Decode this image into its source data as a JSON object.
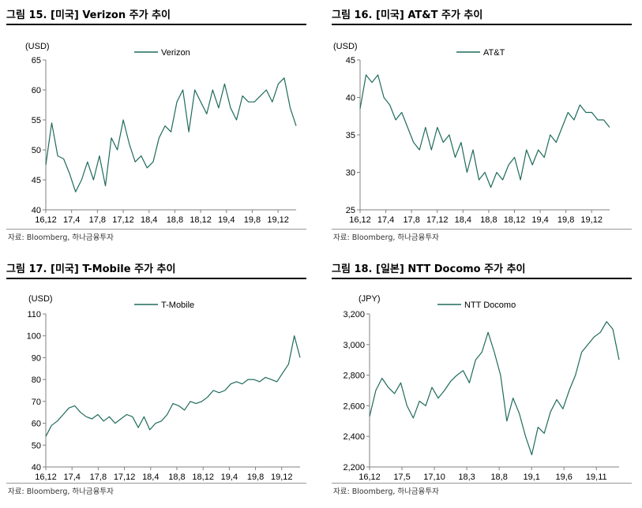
{
  "colors": {
    "series": "#1f6b5c"
  },
  "chart_data": [
    {
      "type": "line",
      "title": "그림 15. [미국] Verizon 주가 추이",
      "unit": "(USD)",
      "source": "자료: Bloomberg, 하나금융투자",
      "series": [
        {
          "name": "Verizon",
          "values": [
            47.5,
            54.5,
            49,
            48.5,
            46,
            43,
            45,
            48,
            45,
            49,
            44,
            52,
            50,
            55,
            51,
            48,
            49,
            47,
            48,
            52,
            54,
            53,
            58,
            60,
            53,
            60,
            58,
            56,
            60,
            57,
            61,
            57,
            55,
            59,
            58,
            58,
            59,
            60,
            58,
            61,
            62,
            57,
            54
          ]
        }
      ],
      "x_labels": [
        "16,12",
        "17,4",
        "17,8",
        "17,12",
        "18,4",
        "18,8",
        "18,12",
        "19,4",
        "19,8",
        "19,12"
      ],
      "y_ticks": [
        40,
        45,
        50,
        55,
        60,
        65
      ],
      "ylim": [
        40,
        65
      ]
    },
    {
      "type": "line",
      "title": "그림 16. [미국] AT&T 주가 추이",
      "unit": "(USD)",
      "source": "자료: Bloomberg, 하나금융투자",
      "series": [
        {
          "name": "AT&T",
          "values": [
            38.5,
            43,
            42,
            43,
            40,
            39,
            37,
            38,
            36,
            34,
            33,
            36,
            33,
            36,
            34,
            35,
            32,
            34,
            30,
            33,
            29,
            30,
            28,
            30,
            29,
            31,
            32,
            29,
            33,
            31,
            33,
            32,
            35,
            34,
            36,
            38,
            37,
            39,
            38,
            38,
            37,
            37,
            36
          ]
        }
      ],
      "x_labels": [
        "16,12",
        "17,4",
        "17,8",
        "17,12",
        "18,4",
        "18,8",
        "18,12",
        "19,4",
        "19,8",
        "19,12"
      ],
      "y_ticks": [
        25,
        30,
        35,
        40,
        45
      ],
      "ylim": [
        25,
        45
      ]
    },
    {
      "type": "line",
      "title": "그림 17. [미국] T-Mobile 주가 추이",
      "unit": "(USD)",
      "source": "자료: Bloomberg, 하나금융투자",
      "series": [
        {
          "name": "T-Mobile",
          "values": [
            54,
            59,
            61,
            64,
            67,
            68,
            65,
            63,
            62,
            64,
            61,
            63,
            60,
            62,
            64,
            63,
            58,
            63,
            57,
            60,
            61,
            64,
            69,
            68,
            66,
            70,
            69,
            70,
            72,
            75,
            74,
            75,
            78,
            79,
            78,
            80,
            80,
            79,
            81,
            80,
            79,
            83,
            87,
            100,
            90
          ]
        }
      ],
      "x_labels": [
        "16,12",
        "17,4",
        "17,8",
        "17,12",
        "18,4",
        "18,8",
        "18,12",
        "19,4",
        "19,8",
        "19,12"
      ],
      "y_ticks": [
        40,
        50,
        60,
        70,
        80,
        90,
        100,
        110
      ],
      "ylim": [
        40,
        110
      ]
    },
    {
      "type": "line",
      "title": "그림 18. [일본] NTT Docomo 주가 추이",
      "unit": "(JPY)",
      "source": "자료: Bloomberg, 하나금융투자",
      "series": [
        {
          "name": "NTT Docomo",
          "values": [
            2530,
            2700,
            2780,
            2720,
            2680,
            2750,
            2600,
            2520,
            2630,
            2600,
            2720,
            2650,
            2700,
            2760,
            2800,
            2830,
            2750,
            2900,
            2950,
            3080,
            2950,
            2800,
            2500,
            2650,
            2550,
            2400,
            2280,
            2460,
            2420,
            2560,
            2640,
            2580,
            2700,
            2800,
            2950,
            3000,
            3050,
            3080,
            3150,
            3100,
            2900
          ]
        }
      ],
      "x_labels": [
        "16,12",
        "17,5",
        "17,10",
        "18,3",
        "18,8",
        "19,1",
        "19,6",
        "19,11"
      ],
      "y_ticks": [
        2200,
        2400,
        2600,
        2800,
        3000,
        3200
      ],
      "y_tick_labels": [
        "2,200",
        "2,400",
        "2,600",
        "2,800",
        "3,000",
        "3,200"
      ],
      "ylim": [
        2200,
        3200
      ]
    }
  ]
}
